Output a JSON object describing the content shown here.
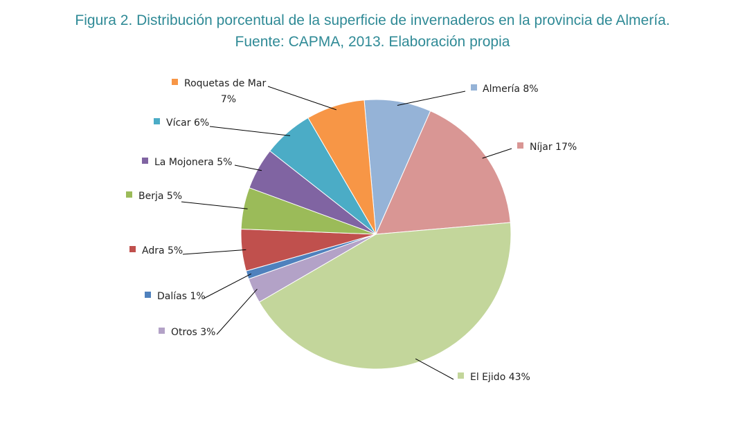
{
  "caption": {
    "line1": "Figura 2. Distribución porcentual de la superficie de invernaderos en la provincia de Almería.",
    "line2": "Fuente: CAPMA, 2013. Elaboración propia"
  },
  "chart_data": {
    "type": "pie",
    "title": "",
    "start_angle_deg": -95,
    "slices": [
      {
        "label": "Almería 8%",
        "category": "Almería",
        "value": 8,
        "color": "#95b3d7"
      },
      {
        "label": "Níjar 17%",
        "category": "Níjar",
        "value": 17,
        "color": "#d99694"
      },
      {
        "label": "El Ejido 43%",
        "category": "El Ejido",
        "value": 43,
        "color": "#c3d69b"
      },
      {
        "label": "Otros 3%",
        "category": "Otros",
        "value": 3,
        "color": "#b3a2c7"
      },
      {
        "label": "Dalías 1%",
        "category": "Dalías",
        "value": 1,
        "color": "#4f81bd"
      },
      {
        "label": "Adra 5%",
        "category": "Adra",
        "value": 5,
        "color": "#c0504d"
      },
      {
        "label": "Berja 5%",
        "category": "Berja",
        "value": 5,
        "color": "#9bbb59"
      },
      {
        "label": "La Mojonera 5%",
        "category": "La Mojonera",
        "value": 5,
        "color": "#8064a2"
      },
      {
        "label": "Vícar 6%",
        "category": "Vícar",
        "value": 6,
        "color": "#4bacc6"
      },
      {
        "label": "Roquetas de Mar 7%",
        "label_lines": [
          "Roquetas de Mar",
          "7%"
        ],
        "category": "Roquetas de Mar",
        "value": 7,
        "color": "#f79646"
      }
    ]
  }
}
